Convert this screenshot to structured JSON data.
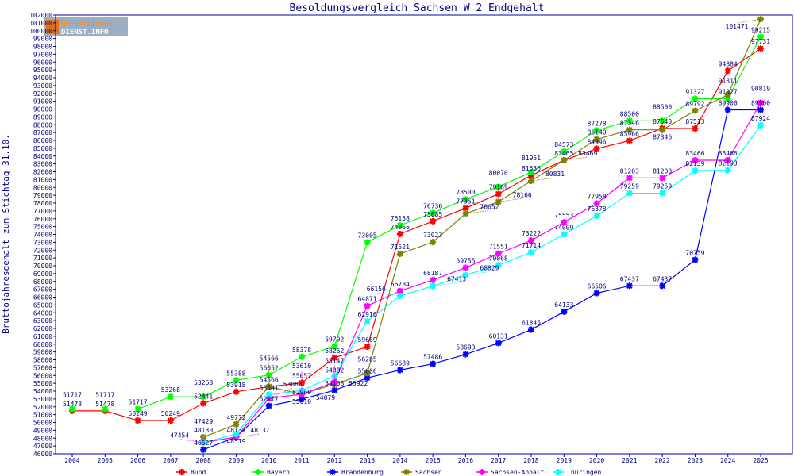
{
  "logo": {
    "line1": "ÖFFENTLICHER",
    "line2": "DIENST.INFO"
  },
  "chart_data": {
    "type": "line",
    "title": "Besoldungsvergleich Sachsen W 2 Endgehalt",
    "xlabel": "",
    "ylabel": "Bruttojahresgehalt zum Stichtag 31.10.",
    "ylim": [
      46000,
      102000
    ],
    "ytick_step": 1000,
    "grid": false,
    "legend_position": "bottom",
    "x": [
      2004,
      2005,
      2006,
      2007,
      2008,
      2009,
      2010,
      2011,
      2012,
      2013,
      2014,
      2015,
      2016,
      2017,
      2018,
      2019,
      2020,
      2021,
      2022,
      2023,
      2024,
      2025
    ],
    "series": [
      {
        "name": "Bund",
        "color": "#ff0000",
        "values": [
          51478,
          51478,
          50249,
          50249,
          52441,
          53918,
          54566,
          55057,
          58262,
          59669,
          74056,
          75685,
          77351,
          79169,
          81536,
          83465,
          84946,
          85966,
          87540,
          87513,
          94884,
          97731
        ]
      },
      {
        "name": "Bayern",
        "color": "#00ff00",
        "values": [
          51717,
          51717,
          51717,
          53268,
          53268,
          55388,
          56052,
          58378,
          59702,
          73005,
          75158,
          76736,
          78500,
          80070,
          81951,
          84573,
          87278,
          88500,
          88500,
          91327,
          91327,
          99215
        ]
      },
      {
        "name": "Brandenburg",
        "color": "#0000ff",
        "values": [
          null,
          null,
          null,
          null,
          46527,
          48137,
          52117,
          52969,
          54108,
          55686,
          56689,
          57486,
          58693,
          60131,
          61845,
          64133,
          66506,
          67437,
          67437,
          70759,
          89900,
          89900
        ]
      },
      {
        "name": "Sachsen",
        "color": "#808000",
        "values": [
          null,
          null,
          null,
          null,
          48130,
          49772,
          54566,
          53610,
          54882,
          56285,
          71521,
          73023,
          76652,
          78166,
          80831,
          83469,
          86140,
          87346,
          87346,
          89792,
          91811,
          101471
        ]
      },
      {
        "name": "Sachsen-Anhalt",
        "color": "#ff00ff",
        "values": [
          null,
          null,
          null,
          null,
          47454,
          48137,
          53083,
          53610,
          55147,
          64871,
          66784,
          68187,
          69755,
          71551,
          73222,
          75553,
          77958,
          81203,
          81203,
          83466,
          83466,
          90819
        ]
      },
      {
        "name": "Thüringen",
        "color": "#00ffff",
        "values": [
          null,
          null,
          null,
          null,
          47429,
          48519,
          53541,
          54079,
          55922,
          62916,
          66156,
          67413,
          68829,
          70068,
          71714,
          74009,
          76378,
          79259,
          79259,
          82139,
          82193,
          87924
        ]
      }
    ]
  }
}
